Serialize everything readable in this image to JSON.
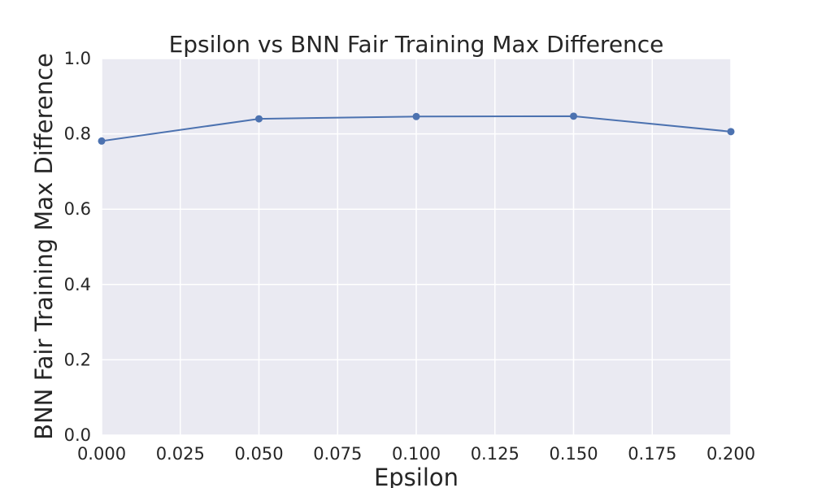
{
  "chart_data": {
    "type": "line",
    "title": "Epsilon vs BNN Fair Training Max Difference",
    "xlabel": "Epsilon",
    "ylabel": "BNN Fair Training Max Difference",
    "x": [
      0.0,
      0.05,
      0.1,
      0.15,
      0.2
    ],
    "series": [
      {
        "values": [
          0.781,
          0.84,
          0.846,
          0.847,
          0.806
        ]
      }
    ],
    "xlim": [
      0.0,
      0.2
    ],
    "ylim": [
      0.0,
      1.0
    ],
    "x_ticks": [
      "0.000",
      "0.025",
      "0.050",
      "0.075",
      "0.100",
      "0.125",
      "0.150",
      "0.175",
      "0.200"
    ],
    "y_ticks": [
      "0.0",
      "0.2",
      "0.4",
      "0.6",
      "0.8",
      "1.0"
    ],
    "grid": true,
    "colors": {
      "plot_background": "#EAEAF2",
      "series": "#4C72B0",
      "grid": "#FFFFFF",
      "text": "#262626"
    }
  }
}
